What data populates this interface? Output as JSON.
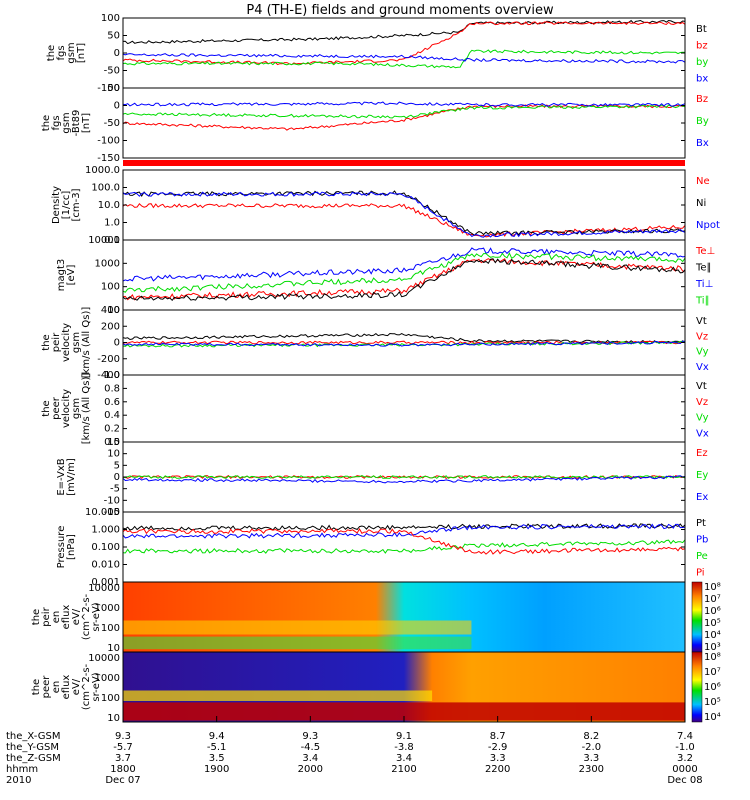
{
  "title": "P4 (TH-E) fields and ground moments overview",
  "colors": {
    "black": "#000000",
    "red": "#ff0000",
    "green": "#00dd00",
    "blue": "#0000ff"
  },
  "chart_data": [
    {
      "type": "line",
      "ylabel": [
        "the",
        "fgs",
        "gsm",
        "[nT]"
      ],
      "yticks": [
        100,
        50,
        0,
        -50,
        -100
      ],
      "ylim": [
        -100,
        100
      ],
      "series": [
        {
          "name": "Bt",
          "color": "#000000",
          "points": [
            [
              0,
              30
            ],
            [
              0.35,
              40
            ],
            [
              0.5,
              50
            ],
            [
              0.6,
              60
            ],
            [
              0.62,
              85
            ],
            [
              1,
              90
            ]
          ]
        },
        {
          "name": "bz",
          "color": "#ff0000",
          "points": [
            [
              0,
              -20
            ],
            [
              0.3,
              -30
            ],
            [
              0.5,
              -20
            ],
            [
              0.6,
              60
            ],
            [
              0.62,
              85
            ],
            [
              1,
              85
            ]
          ]
        },
        {
          "name": "by",
          "color": "#00dd00",
          "points": [
            [
              0,
              -30
            ],
            [
              0.4,
              -30
            ],
            [
              0.6,
              -40
            ],
            [
              0.62,
              5
            ],
            [
              1,
              0
            ]
          ]
        },
        {
          "name": "bx",
          "color": "#0000ff",
          "points": [
            [
              0,
              -5
            ],
            [
              0.5,
              -10
            ],
            [
              0.62,
              -20
            ],
            [
              1,
              -25
            ]
          ]
        }
      ]
    },
    {
      "type": "line",
      "ylabel": [
        "the",
        "fgs",
        "gsm",
        "-Bt89",
        "[nT]"
      ],
      "yticks": [
        50,
        0,
        -50,
        -100,
        -150
      ],
      "ylim": [
        -175,
        55
      ],
      "series": [
        {
          "name": "Bz",
          "color": "#ff0000",
          "points": [
            [
              0,
              -60
            ],
            [
              0.3,
              -80
            ],
            [
              0.5,
              -50
            ],
            [
              0.62,
              -5
            ],
            [
              1,
              -5
            ]
          ]
        },
        {
          "name": "By",
          "color": "#00dd00",
          "points": [
            [
              0,
              -30
            ],
            [
              0.5,
              -40
            ],
            [
              0.62,
              -10
            ],
            [
              1,
              -5
            ]
          ]
        },
        {
          "name": "Bx",
          "color": "#0000ff",
          "points": [
            [
              0,
              0
            ],
            [
              0.5,
              5
            ],
            [
              0.62,
              0
            ],
            [
              1,
              0
            ]
          ]
        }
      ]
    },
    {
      "type": "line",
      "ylabel": [
        "Density",
        "[1/cc]",
        "[cm-3]"
      ],
      "yticks": [
        "1000.0",
        "100.0",
        "10.0",
        "1.0",
        "0.1"
      ],
      "ylim": [
        0.08,
        1500
      ],
      "log": true,
      "series": [
        {
          "name": "Ne",
          "color": "#ff0000",
          "points": [
            [
              0,
              10
            ],
            [
              0.5,
              10
            ],
            [
              0.62,
              0.15
            ],
            [
              1,
              0.5
            ]
          ]
        },
        {
          "name": "Ni",
          "color": "#000000",
          "points": [
            [
              0,
              50
            ],
            [
              0.5,
              60
            ],
            [
              0.62,
              0.2
            ],
            [
              1,
              0.3
            ]
          ]
        },
        {
          "name": "Npot",
          "color": "#0000ff",
          "points": [
            [
              0,
              50
            ],
            [
              0.5,
              50
            ],
            [
              0.62,
              0.15
            ],
            [
              1,
              0.3
            ]
          ]
        }
      ]
    },
    {
      "type": "line",
      "ylabel": [
        "magt3",
        "[eV]"
      ],
      "yticks": [
        "10000",
        "1000",
        "100",
        "10"
      ],
      "ylim": [
        8,
        12000
      ],
      "log": true,
      "series": [
        {
          "name": "Te⊥",
          "color": "#ff0000",
          "points": [
            [
              0,
              30
            ],
            [
              0.5,
              60
            ],
            [
              0.62,
              1500
            ],
            [
              1,
              600
            ]
          ]
        },
        {
          "name": "Te∥",
          "color": "#000000",
          "points": [
            [
              0,
              25
            ],
            [
              0.5,
              40
            ],
            [
              0.62,
              1500
            ],
            [
              1,
              500
            ]
          ]
        },
        {
          "name": "Ti⊥",
          "color": "#0000ff",
          "points": [
            [
              0,
              200
            ],
            [
              0.5,
              500
            ],
            [
              0.62,
              4000
            ],
            [
              1,
              2500
            ]
          ]
        },
        {
          "name": "Ti∥",
          "color": "#00dd00",
          "points": [
            [
              0,
              60
            ],
            [
              0.5,
              200
            ],
            [
              0.62,
              2500
            ],
            [
              1,
              1500
            ]
          ]
        }
      ]
    },
    {
      "type": "line",
      "ylabel": [
        "the",
        "peir",
        "velocity",
        "gsm",
        "[km/s (All Qs)]"
      ],
      "yticks": [
        400,
        200,
        0,
        -200,
        -400
      ],
      "ylim": [
        -400,
        400
      ],
      "series": [
        {
          "name": "Vt",
          "color": "#000000",
          "points": [
            [
              0,
              50
            ],
            [
              0.5,
              100
            ],
            [
              0.62,
              20
            ],
            [
              1,
              10
            ]
          ]
        },
        {
          "name": "Vz",
          "color": "#ff0000",
          "points": [
            [
              0,
              0
            ],
            [
              0.5,
              0
            ],
            [
              1,
              0
            ]
          ]
        },
        {
          "name": "Vy",
          "color": "#00dd00",
          "points": [
            [
              0,
              -40
            ],
            [
              0.5,
              -30
            ],
            [
              1,
              0
            ]
          ]
        },
        {
          "name": "Vx",
          "color": "#0000ff",
          "points": [
            [
              0,
              -20
            ],
            [
              0.5,
              -30
            ],
            [
              1,
              0
            ]
          ]
        }
      ]
    },
    {
      "type": "line",
      "ylabel": [
        "the",
        "peer",
        "velocity",
        "gsm",
        "[km/s (All Qs)]"
      ],
      "yticks": [
        "1.0",
        "0.8",
        "0.6",
        "0.4",
        "0.2",
        "0.0"
      ],
      "ylim": [
        0,
        1
      ],
      "series": [
        {
          "name": "Vt",
          "color": "#000000",
          "points": []
        },
        {
          "name": "Vz",
          "color": "#ff0000",
          "points": []
        },
        {
          "name": "Vy",
          "color": "#00dd00",
          "points": []
        },
        {
          "name": "Vx",
          "color": "#0000ff",
          "points": []
        }
      ]
    },
    {
      "type": "line",
      "ylabel": [
        "E=-VxB",
        "[mV/m]"
      ],
      "yticks": [
        15,
        10,
        5,
        0,
        -5,
        -10,
        -15
      ],
      "ylim": [
        -15,
        15
      ],
      "series": [
        {
          "name": "Ez",
          "color": "#ff0000",
          "points": [
            [
              0,
              0
            ],
            [
              1,
              0
            ]
          ]
        },
        {
          "name": "Ey",
          "color": "#00dd00",
          "points": [
            [
              0,
              0
            ],
            [
              1,
              0
            ]
          ]
        },
        {
          "name": "Ex",
          "color": "#0000ff",
          "points": [
            [
              0,
              -1
            ],
            [
              0.5,
              -2
            ],
            [
              1,
              0
            ]
          ]
        }
      ]
    },
    {
      "type": "line",
      "ylabel": [
        "Pressure",
        "[nPa]"
      ],
      "yticks": [
        "10.000",
        "1.000",
        "0.100",
        "0.010",
        "0.001"
      ],
      "ylim": [
        0.001,
        10
      ],
      "log": true,
      "series": [
        {
          "name": "Pt",
          "color": "#000000",
          "points": [
            [
              0,
              1.2
            ],
            [
              0.5,
              1.3
            ],
            [
              0.62,
              1.5
            ],
            [
              1,
              1.6
            ]
          ]
        },
        {
          "name": "Pb",
          "color": "#0000ff",
          "points": [
            [
              0,
              0.4
            ],
            [
              0.5,
              0.5
            ],
            [
              0.62,
              1.4
            ],
            [
              1,
              1.5
            ]
          ]
        },
        {
          "name": "Pe",
          "color": "#00dd00",
          "points": [
            [
              0,
              0.06
            ],
            [
              0.5,
              0.06
            ],
            [
              0.62,
              0.12
            ],
            [
              1,
              0.2
            ]
          ]
        },
        {
          "name": "Pi",
          "color": "#ff0000",
          "points": [
            [
              0,
              0.8
            ],
            [
              0.5,
              0.8
            ],
            [
              0.62,
              0.05
            ],
            [
              1,
              0.08
            ]
          ]
        }
      ]
    },
    {
      "type": "heatmap",
      "ylabel": [
        "the",
        "peir",
        "en",
        "eflux",
        "eV/",
        "(cm^2-s-",
        "sr-eV)"
      ],
      "yticks": [
        "10000",
        "1000",
        "100",
        "10"
      ],
      "log": true,
      "colorbar_labels": [
        "10⁸",
        "10⁷",
        "10⁶",
        "10⁵",
        "10⁴",
        "10³"
      ]
    },
    {
      "type": "heatmap",
      "ylabel": [
        "the",
        "peer",
        "en",
        "eflux",
        "eV/",
        "(cm^2-s-",
        "sr-eV)"
      ],
      "yticks": [
        "10000",
        "1000",
        "100",
        "10"
      ],
      "log": true,
      "colorbar_labels": [
        "10⁸",
        "10⁷",
        "10⁶",
        "10⁵",
        "10⁴"
      ]
    }
  ],
  "x_axis": {
    "row_labels": [
      "the_X-GSM",
      "the_Y-GSM",
      "the_Z-GSM",
      "hhmm",
      "2010"
    ],
    "ticks": [
      {
        "x": "9.3",
        "y": "-5.7",
        "z": "3.7",
        "hhmm": "1800",
        "date": "Dec 07"
      },
      {
        "x": "9.4",
        "y": "-5.1",
        "z": "3.5",
        "hhmm": "1900",
        "date": ""
      },
      {
        "x": "9.3",
        "y": "-4.5",
        "z": "3.4",
        "hhmm": "2000",
        "date": ""
      },
      {
        "x": "9.1",
        "y": "-3.8",
        "z": "3.4",
        "hhmm": "2100",
        "date": ""
      },
      {
        "x": "8.7",
        "y": "-2.9",
        "z": "3.3",
        "hhmm": "2200",
        "date": ""
      },
      {
        "x": "8.2",
        "y": "-2.0",
        "z": "3.3",
        "hhmm": "2300",
        "date": ""
      },
      {
        "x": "7.4",
        "y": "-1.0",
        "z": "3.2",
        "hhmm": "0000",
        "date": "Dec 08"
      }
    ]
  }
}
